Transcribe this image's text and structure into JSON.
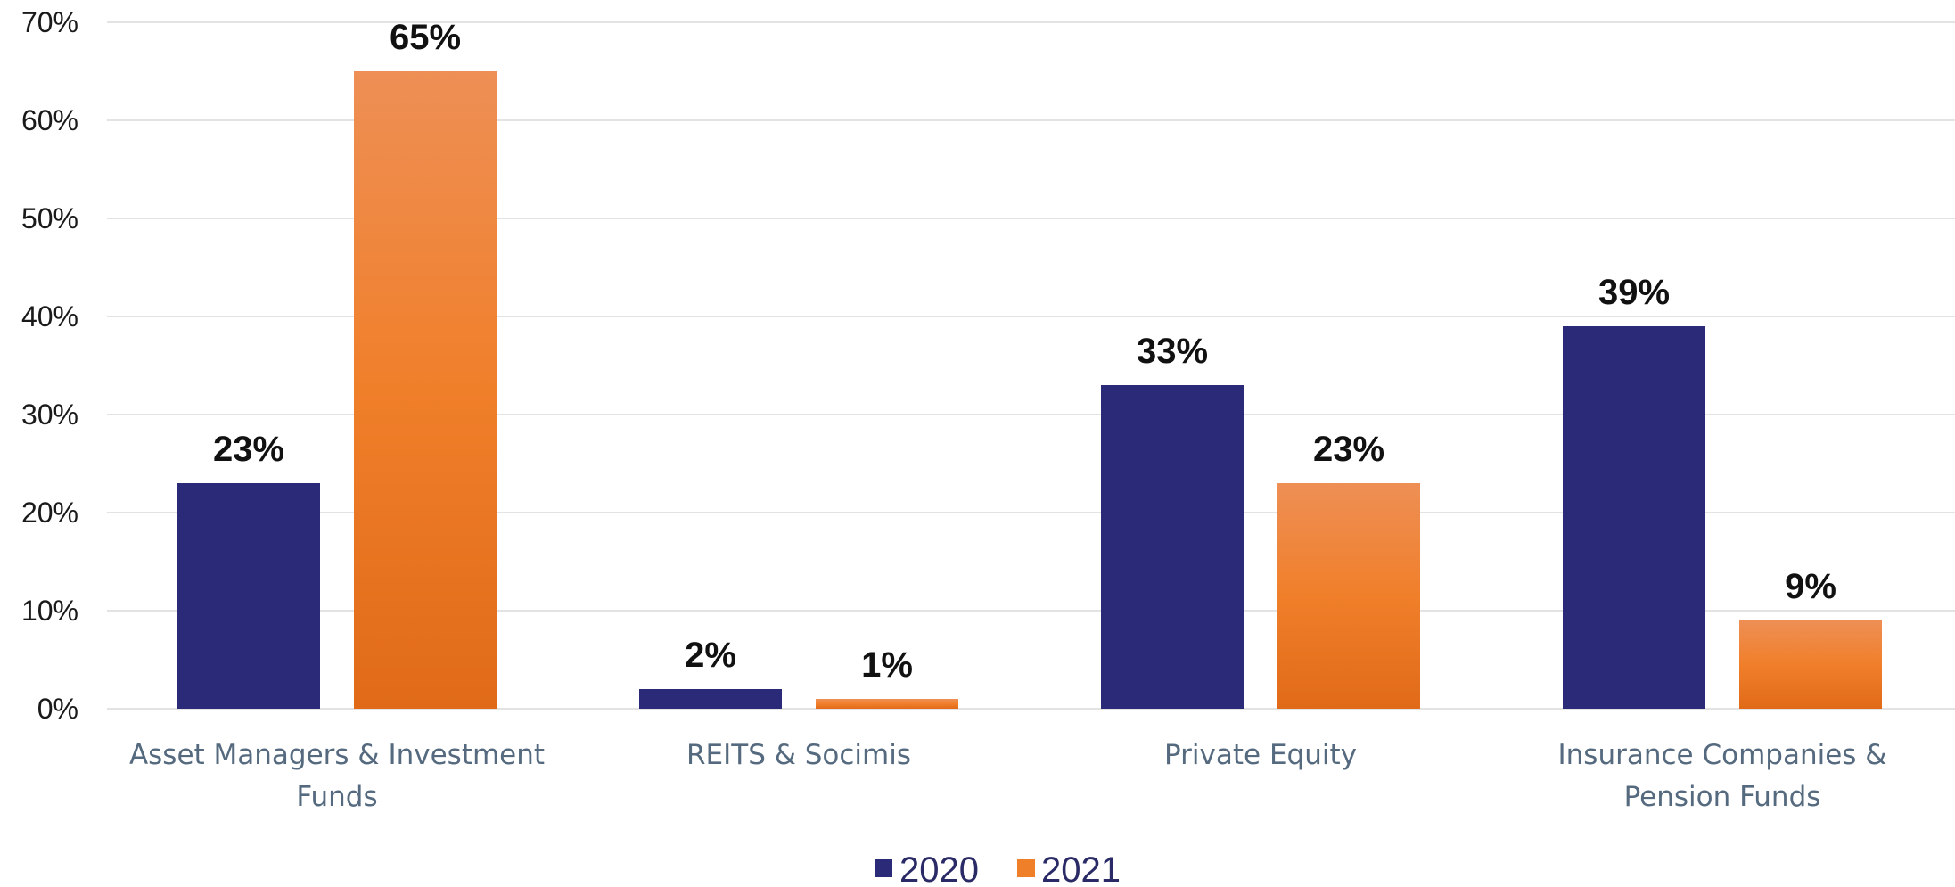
{
  "chart_data": {
    "type": "bar",
    "title": "",
    "xlabel": "",
    "ylabel": "",
    "ylim": [
      0,
      70
    ],
    "yticks": [
      0,
      10,
      20,
      30,
      40,
      50,
      60,
      70
    ],
    "ytick_labels": [
      "0%",
      "10%",
      "20%",
      "30%",
      "40%",
      "50%",
      "60%",
      "70%"
    ],
    "grid": true,
    "legend_position": "bottom-center",
    "categories": [
      [
        "Asset Managers & Investment",
        "Funds"
      ],
      [
        "REITS & Socimis"
      ],
      [
        "Private Equity"
      ],
      [
        "Insurance Companies &",
        "Pension Funds"
      ]
    ],
    "series": [
      {
        "name": "2020",
        "values": [
          23,
          2,
          33,
          39
        ],
        "labels": [
          "23%",
          "2%",
          "33%",
          "39%"
        ],
        "color": "#2b2a78"
      },
      {
        "name": "2021",
        "values": [
          65,
          1,
          23,
          9
        ],
        "labels": [
          "65%",
          "1%",
          "23%",
          "9%"
        ],
        "color": "#f07f2a",
        "gradient": [
          "#ee8f55",
          "#f07f2a",
          "#e06a18"
        ]
      }
    ]
  }
}
